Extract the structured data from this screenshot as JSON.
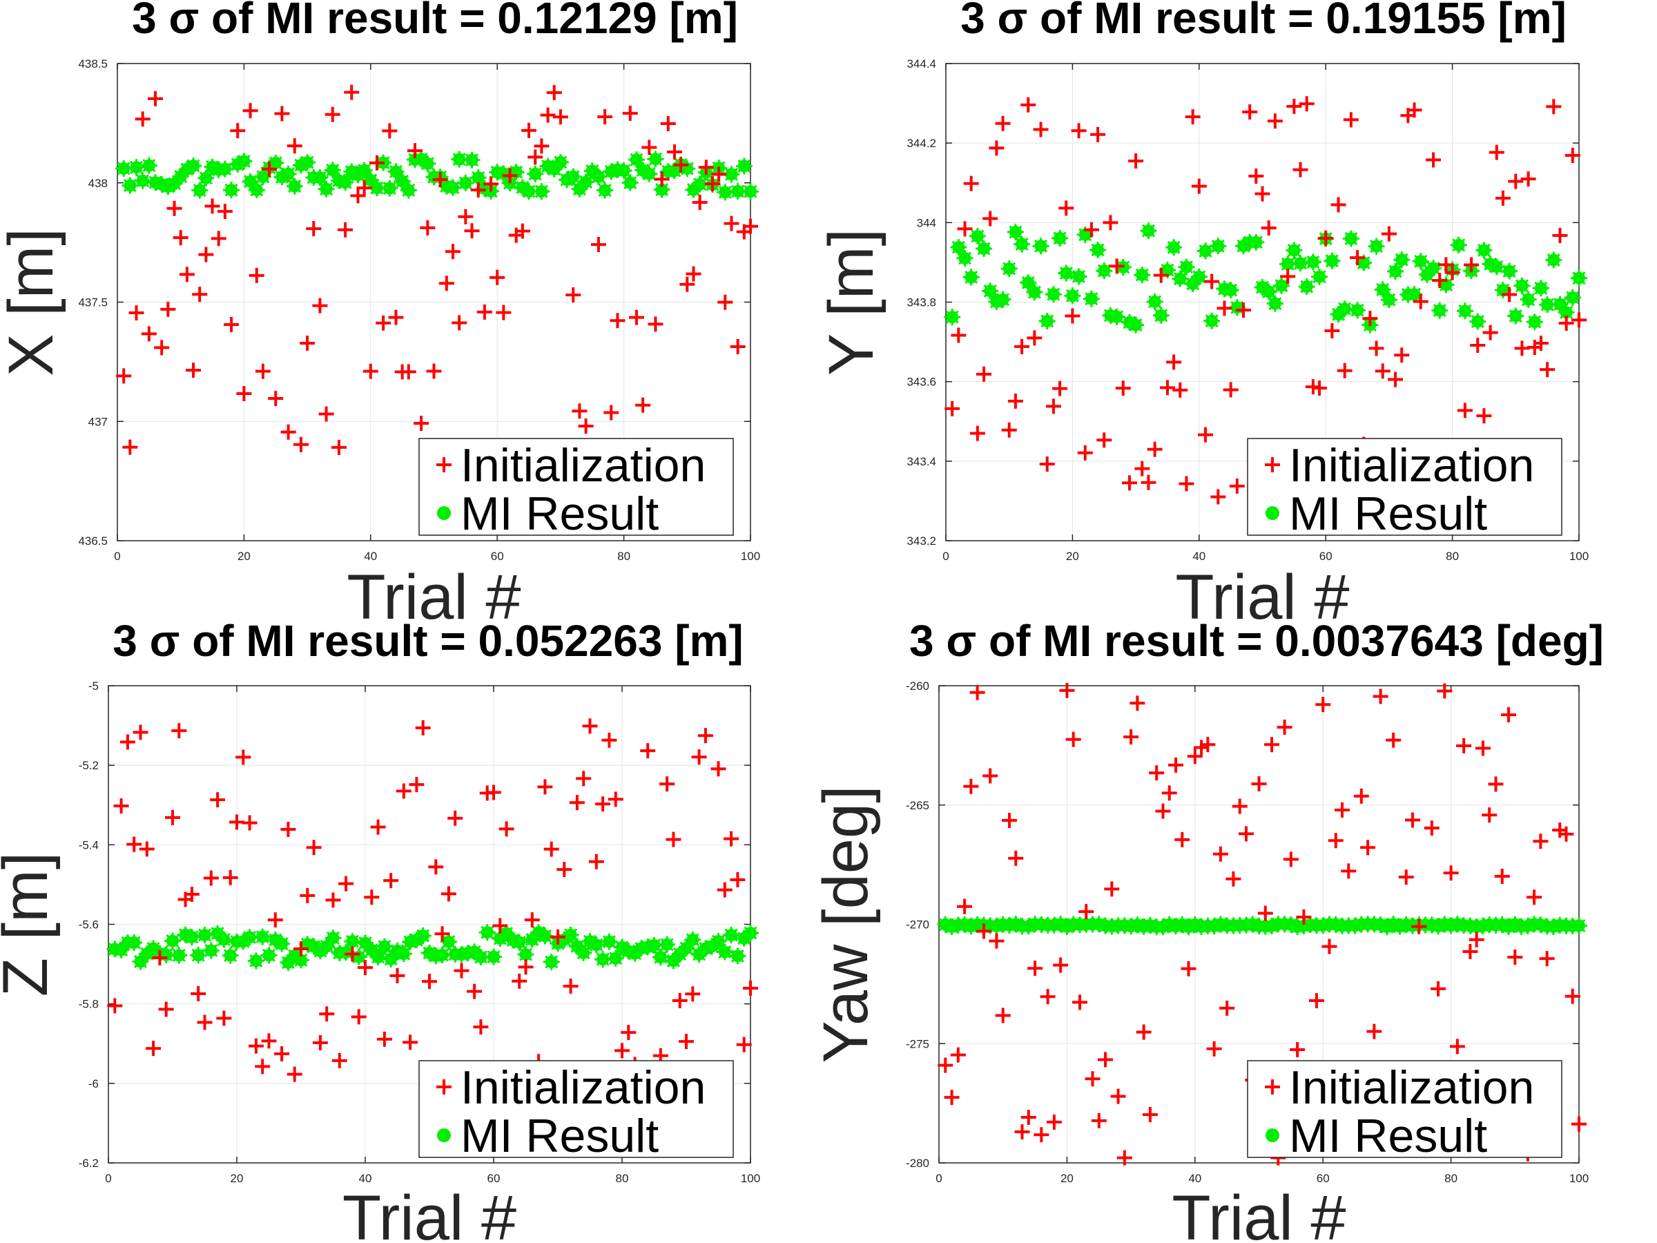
{
  "colors": {
    "init": "#ff0000",
    "mi": "#00ee00"
  },
  "charts": [
    {
      "type": "scatter",
      "title": "3 σ of MI result = 0.12129 [m]",
      "xlabel": "Trial #",
      "ylabel": "X [m]",
      "xlim": [
        0,
        100
      ],
      "ylim": [
        436.5,
        438.5
      ],
      "xticks": [
        0,
        20,
        40,
        60,
        80,
        100
      ],
      "xtick_labels": [
        "0",
        "20",
        "40",
        "60",
        "80",
        "100"
      ],
      "yticks": [
        436.5,
        437,
        437.5,
        438,
        438.5
      ],
      "ytick_labels": [
        "436.5",
        "437",
        "437.5",
        "438",
        "438.5"
      ],
      "legend": [
        "Initialization",
        "MI Result"
      ],
      "mi_center": 438.03,
      "mi_amp": 0.07,
      "init_min": 436.8,
      "init_max": 438.38
    },
    {
      "type": "scatter",
      "title": "3 σ of MI result = 0.19155 [m]",
      "xlabel": "Trial #",
      "ylabel": "Y [m]",
      "xlim": [
        0,
        100
      ],
      "ylim": [
        343.2,
        344.4
      ],
      "xticks": [
        0,
        20,
        40,
        60,
        80,
        100
      ],
      "xtick_labels": [
        "0",
        "20",
        "40",
        "60",
        "80",
        "100"
      ],
      "yticks": [
        343.2,
        343.4,
        343.6,
        343.8,
        344,
        344.2,
        344.4
      ],
      "ytick_labels": [
        "343.2",
        "343.4",
        "343.6",
        "343.8",
        "344",
        "344.2",
        "344.4"
      ],
      "legend": [
        "Initialization",
        "MI Result"
      ],
      "mi_center": 343.86,
      "mi_amp": 0.12,
      "init_min": 343.3,
      "init_max": 344.3
    },
    {
      "type": "scatter",
      "title": "3 σ of MI result = 0.052263 [m]",
      "xlabel": "Trial #",
      "ylabel": "Z [m]",
      "xlim": [
        0,
        100
      ],
      "ylim": [
        -6.2,
        -5
      ],
      "xticks": [
        0,
        20,
        40,
        60,
        80,
        100
      ],
      "xtick_labels": [
        "0",
        "20",
        "40",
        "60",
        "80",
        "100"
      ],
      "yticks": [
        -6.2,
        -6,
        -5.8,
        -5.6,
        -5.4,
        -5.2,
        -5
      ],
      "ytick_labels": [
        "-6.2",
        "-6",
        "-5.8",
        "-5.6",
        "-5.4",
        "-5.2",
        "-5"
      ],
      "legend": [
        "Initialization",
        "MI Result"
      ],
      "mi_center": -5.66,
      "mi_amp": 0.04,
      "init_min": -6.0,
      "init_max": -5.1
    },
    {
      "type": "scatter",
      "title": "3 σ of MI result = 0.0037643 [deg]",
      "xlabel": "Trial #",
      "ylabel": "Yaw [deg]",
      "xlim": [
        0,
        100
      ],
      "ylim": [
        -280,
        -260
      ],
      "xticks": [
        0,
        20,
        40,
        60,
        80,
        100
      ],
      "xtick_labels": [
        "0",
        "20",
        "40",
        "60",
        "80",
        "100"
      ],
      "yticks": [
        -280,
        -275,
        -270,
        -265,
        -260
      ],
      "ytick_labels": [
        "-280",
        "-275",
        "-270",
        "-265",
        "-260"
      ],
      "legend": [
        "Initialization",
        "MI Result"
      ],
      "mi_center": -270.05,
      "mi_amp": 0.06,
      "init_min": -279.9,
      "init_max": -260.1
    }
  ]
}
